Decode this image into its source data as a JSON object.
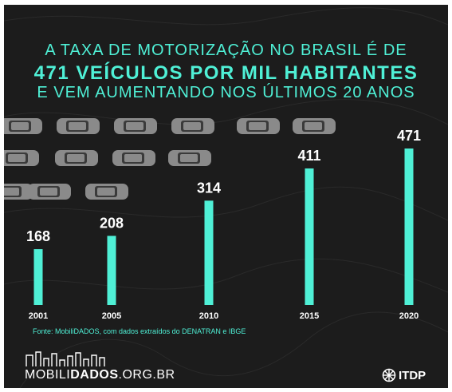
{
  "headline": {
    "line1": "A TAXA DE MOTORIZAÇÃO NO BRASIL É DE",
    "line2": "471 VEÍCULOS POR MIL HABITANTES",
    "line3": "E VEM AUMENTANDO NOS ÚLTIMOS 20 ANOS"
  },
  "chart_data": {
    "type": "bar",
    "categories": [
      "2001",
      "2005",
      "2010",
      "2015",
      "2020"
    ],
    "values": [
      168,
      208,
      314,
      411,
      471
    ],
    "title": "",
    "xlabel": "",
    "ylabel": "",
    "ylim": [
      0,
      471
    ],
    "grid": false,
    "bar_color": "#4ff0d6"
  },
  "source": "Fonte: MobiliDADOS, com dados extraídos do DENATRAN e IBGE",
  "brand": {
    "prefix": "MOBILI",
    "bold": "DADOS",
    "suffix": ".ORG.BR",
    "icon": "bar-chart-people-icon"
  },
  "partner": {
    "name": "ITDP",
    "icon": "itdp-logo-icon"
  },
  "colors": {
    "background": "#1c1c1c",
    "accent": "#4ff0d6",
    "car": "#8a8a8a"
  }
}
